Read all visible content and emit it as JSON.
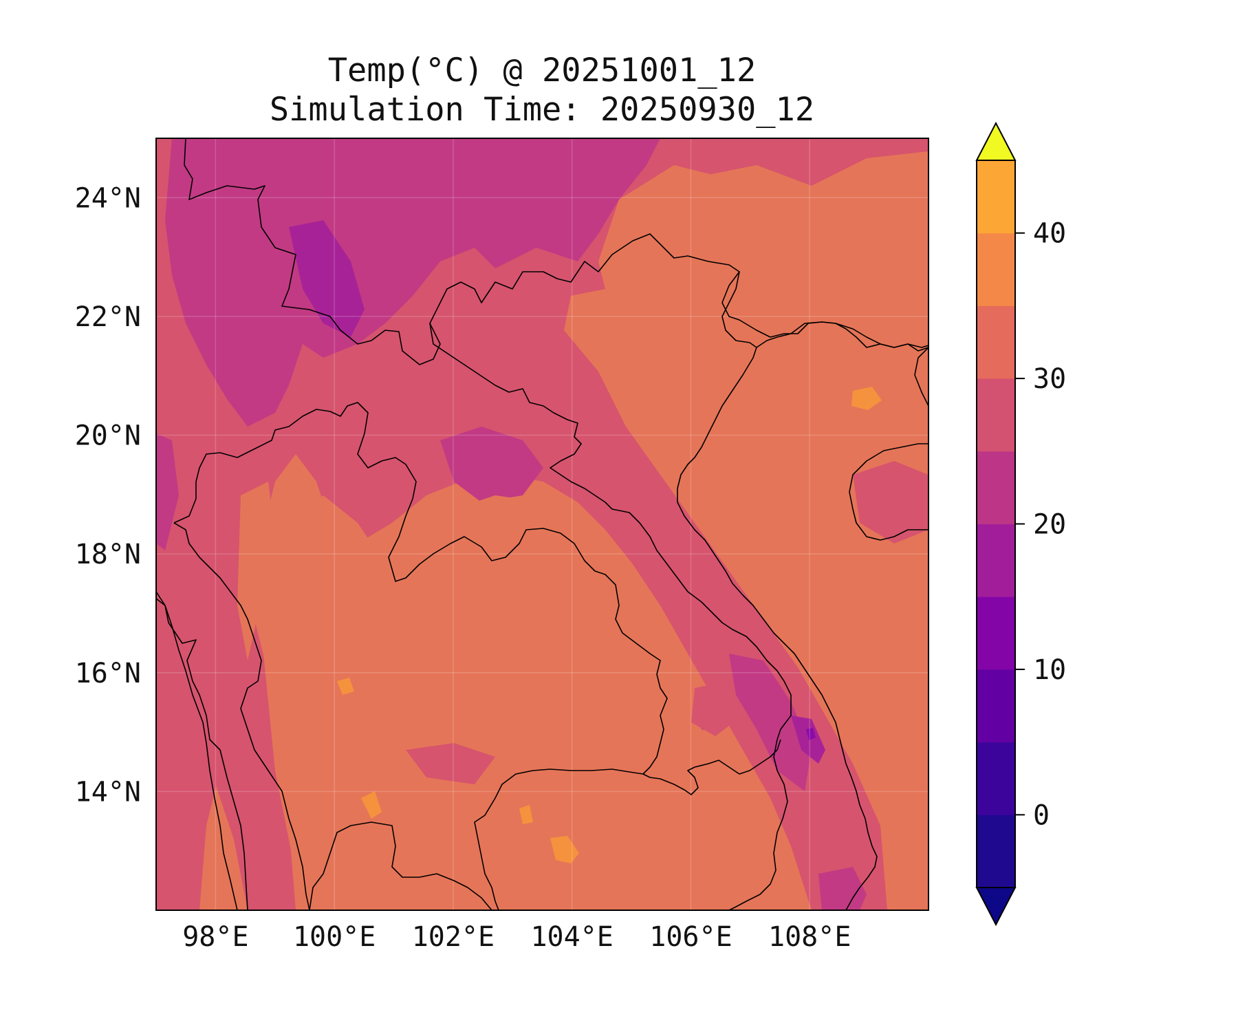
{
  "title": {
    "line1": "Temp(°C) @ 20251001_12",
    "line2": "Simulation Time: 20250930_12"
  },
  "map": {
    "lon_range": [
      97.0,
      110.0
    ],
    "lat_range": [
      12.0,
      25.0
    ],
    "x_ticks": [
      {
        "value": 98,
        "label": "98°E"
      },
      {
        "value": 100,
        "label": "100°E"
      },
      {
        "value": 102,
        "label": "102°E"
      },
      {
        "value": 104,
        "label": "104°E"
      },
      {
        "value": 106,
        "label": "106°E"
      },
      {
        "value": 108,
        "label": "108°E"
      }
    ],
    "y_ticks": [
      {
        "value": 24,
        "label": "24°N"
      },
      {
        "value": 22,
        "label": "22°N"
      },
      {
        "value": 20,
        "label": "20°N"
      },
      {
        "value": 18,
        "label": "18°N"
      },
      {
        "value": 16,
        "label": "16°N"
      },
      {
        "value": 14,
        "label": "14°N"
      }
    ],
    "grid": true
  },
  "colorbar": {
    "levels": [
      -5,
      0,
      5,
      10,
      15,
      20,
      25,
      30,
      35,
      40,
      45
    ],
    "colors": [
      "#1f0a8f",
      "#3c049b",
      "#6200a4",
      "#8305a7",
      "#a21d9a",
      "#bc3587",
      "#d35171",
      "#e56b5d",
      "#f48849",
      "#fca636",
      "#f0f921"
    ],
    "under_color": "#0d0887",
    "over_color": "#f0f921",
    "extend": "both",
    "ticks": [
      {
        "value": 0,
        "label": "0"
      },
      {
        "value": 10,
        "label": "10"
      },
      {
        "value": 20,
        "label": "20"
      },
      {
        "value": 30,
        "label": "30"
      },
      {
        "value": 40,
        "label": "40"
      }
    ]
  },
  "fill_colors": {
    "hot": "#f5923e",
    "warm": "#e57558",
    "mild": "#d6546e",
    "cool": "#c23a84",
    "cold": "#a82297",
    "coldest": "#8a0ba6"
  }
}
